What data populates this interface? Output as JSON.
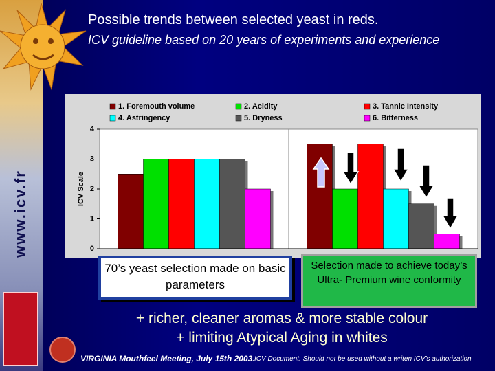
{
  "slide": {
    "title": "Possible trends between selected yeast in reds.",
    "subtitle": "ICV guideline based on 20 years of experiments and experience",
    "sidebar_url": "www.icv.fr",
    "box_left": "70’s yeast selection made on basic parameters",
    "box_right": "Selection made to achieve today’s Ultra- Premium wine conformity",
    "benefit_1": "+ richer, cleaner aromas & more stable colour",
    "benefit_2": "+ limiting Atypical Aging in whites",
    "footer_meeting": "VIRGINIA Mouthfeel Meeting, July 15th 2003.",
    "footer_notice": "ICV Document. Should not be used without a writen ICV’s authorization"
  },
  "chart_data": {
    "type": "bar",
    "categories": [
      null,
      null
    ],
    "y_label": "ICV Scale",
    "series": [
      {
        "name": "1. Foremouth volume",
        "color": "#800000",
        "values": [
          2.5,
          3.5
        ]
      },
      {
        "name": "2. Acidity",
        "color": "#00e000",
        "values": [
          3,
          2
        ]
      },
      {
        "name": "3. Tannic Intensity",
        "color": "#ff0000",
        "values": [
          3,
          3.5
        ]
      },
      {
        "name": "4. Astringency",
        "color": "#00ffff",
        "values": [
          3,
          2
        ]
      },
      {
        "name": "5. Dryness",
        "color": "#555555",
        "values": [
          3,
          1.5
        ]
      },
      {
        "name": "6. Bitterness",
        "color": "#ff00ff",
        "values": [
          2,
          0.5
        ]
      }
    ],
    "ylim": [
      0,
      4
    ],
    "yticks": [
      0,
      1,
      2,
      3,
      4
    ]
  }
}
